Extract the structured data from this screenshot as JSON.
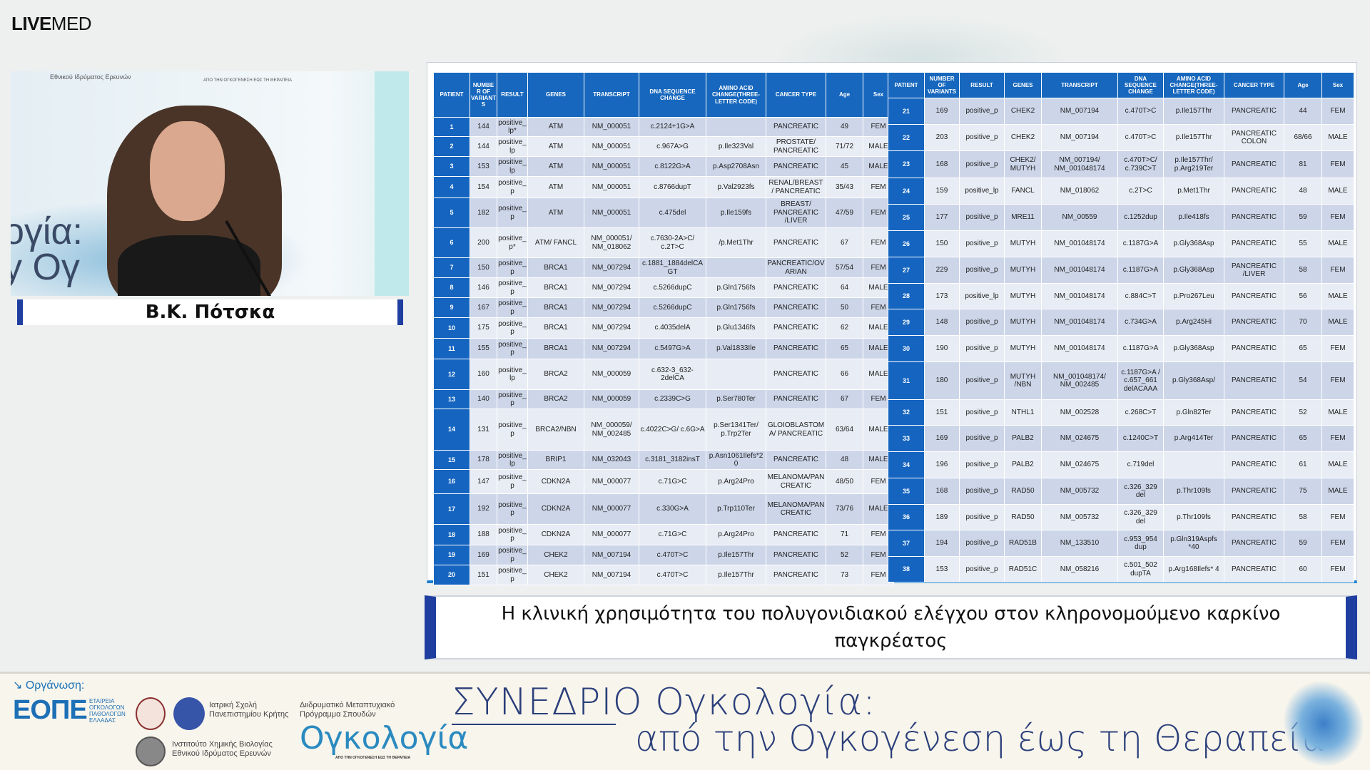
{
  "brand": {
    "logo_bold": "LIVE",
    "logo_light": "MED"
  },
  "video": {
    "speaker_name": "Β.Κ. Πότσκα",
    "backdrop_text": "ογία:\ny Ογ",
    "backdrop_small_1": "Εθνικού Ιδρύματος Ερευνών",
    "backdrop_small_2": "ΑΠΟ ΤΗΝ ΟΓΚΟΓΕΝΕΣΗ ΕΩΣ ΤΗ ΘΕΡΑΠΕΙΑ"
  },
  "slide": {
    "left_headers": [
      "PATIENT",
      "NUMBER OF VARIANTS",
      "RESULT",
      "GENES",
      "TRANSCRIPT",
      "DNA SEQUENCE CHANGE",
      "AMINO ACID CHANGE(THREE-LETTER CODE)",
      "CANCER TYPE",
      "Age",
      "Sex"
    ],
    "right_headers": [
      "PATIENT",
      "NUMBER OF VARIANTS",
      "RESULT",
      "GENES",
      "TRANSCRIPT",
      "DNA SEQUENCE CHANGE",
      "AMINO ACID CHANGE(THREE-LETTER CODE)",
      "CANCER TYPE",
      "Age",
      "Sex"
    ],
    "left_rows": [
      [
        "1",
        "144",
        "positive_lp*",
        "ATM",
        "NM_000051",
        "c.2124+1G>A",
        "",
        "PANCREATIC",
        "49",
        "FEM"
      ],
      [
        "2",
        "144",
        "positive_lp",
        "ATM",
        "NM_000051",
        "c.967A>G",
        "p.Ile323Val",
        "PROSTATE/ PANCREATIC",
        "71/72",
        "MALE"
      ],
      [
        "3",
        "153",
        "positive_lp",
        "ATM",
        "NM_000051",
        "c.8122G>A",
        "p.Asp2708Asn",
        "PANCREATIC",
        "45",
        "MALE"
      ],
      [
        "4",
        "154",
        "positive_p",
        "ATM",
        "NM_000051",
        "c.8766dupT",
        "p.Val2923fs",
        "RENAL/BREAST / PANCREATIC",
        "35/43",
        "FEM"
      ],
      [
        "5",
        "182",
        "positive_p",
        "ATM",
        "NM_000051",
        "c.475del",
        "p.Ile159fs",
        "BREAST/ PANCREATIC /LIVER",
        "47/59",
        "FEM"
      ],
      [
        "6",
        "200",
        "positive_p*",
        "ATM/ FANCL",
        "NM_000051/ NM_018062",
        "c.7630-2A>C/ c.2T>C",
        "/p.Met1Thr",
        "PANCREATIC",
        "67",
        "FEM"
      ],
      [
        "7",
        "150",
        "positive_p",
        "BRCA1",
        "NM_007294",
        "c.1881_1884delCAGT",
        "",
        "PANCREATIC/OVARIAN",
        "57/54",
        "FEM"
      ],
      [
        "8",
        "146",
        "positive_p",
        "BRCA1",
        "NM_007294",
        "c.5266dupC",
        "p.Gln1756fs",
        "PANCREATIC",
        "64",
        "MALE"
      ],
      [
        "9",
        "167",
        "positive_p",
        "BRCA1",
        "NM_007294",
        "c.5266dupC",
        "p.Gln1756fs",
        "PANCREATIC",
        "50",
        "FEM"
      ],
      [
        "10",
        "175",
        "positive_p",
        "BRCA1",
        "NM_007294",
        "c.4035delA",
        "p.Glu1346fs",
        "PANCREATIC",
        "62",
        "MALE"
      ],
      [
        "11",
        "155",
        "positive_p",
        "BRCA1",
        "NM_007294",
        "c.5497G>A",
        "p.Val1833Ile",
        "PANCREATIC",
        "65",
        "MALE"
      ],
      [
        "12",
        "160",
        "positive_lp",
        "BRCA2",
        "NM_000059",
        "c.632-3_632-2delCA",
        "",
        "PANCREATIC",
        "66",
        "MALE"
      ],
      [
        "13",
        "140",
        "positive_p",
        "BRCA2",
        "NM_000059",
        "c.2339C>G",
        "p.Ser780Ter",
        "PANCREATIC",
        "67",
        "FEM"
      ],
      [
        "14",
        "131",
        "positive_p",
        "BRCA2/NBN",
        "NM_000059/ NM_002485",
        "c.4022C>G/ c.6G>A",
        "p.Ser1341Ter/ p.Trp2Ter",
        "GLOIOBLASTOMA/ PANCREATIC",
        "63/64",
        "MALE"
      ],
      [
        "15",
        "178",
        "positive_lp",
        "BRIP1",
        "NM_032043",
        "c.3181_3182insT",
        "p.Asn1061Ilefs*20",
        "PANCREATIC",
        "48",
        "MALE"
      ],
      [
        "16",
        "147",
        "positive_p",
        "CDKN2A",
        "NM_000077",
        "c.71G>C",
        "p.Arg24Pro",
        "MELANOMA/PANCREATIC",
        "48/50",
        "FEM"
      ],
      [
        "17",
        "192",
        "positive_p",
        "CDKN2A",
        "NM_000077",
        "c.330G>A",
        "p.Trp110Ter",
        "MELANOMA/PANCREATIC",
        "73/76",
        "MALE"
      ],
      [
        "18",
        "188",
        "positive_p",
        "CDKN2A",
        "NM_000077",
        "c.71G>C",
        "p.Arg24Pro",
        "PANCREATIC",
        "71",
        "FEM"
      ],
      [
        "19",
        "169",
        "positive_p",
        "CHEK2",
        "NM_007194",
        "c.470T>C",
        "p.Ile157Thr",
        "PANCREATIC",
        "52",
        "FEM"
      ],
      [
        "20",
        "151",
        "positive_p",
        "CHEK2",
        "NM_007194",
        "c.470T>C",
        "p.Ile157Thr",
        "PANCREATIC",
        "73",
        "FEM"
      ]
    ],
    "right_rows": [
      [
        "21",
        "169",
        "positive_p",
        "CHEK2",
        "NM_007194",
        "c.470T>C",
        "p.Ile157Thr",
        "PANCREATIC",
        "44",
        "FEM"
      ],
      [
        "22",
        "203",
        "positive_p",
        "CHEK2",
        "NM_007194",
        "c.470T>C",
        "p.Ile157Thr",
        "PANCREATIC COLON",
        "68/66",
        "MALE"
      ],
      [
        "23",
        "168",
        "positive_p",
        "CHEK2/ MUTYH",
        "NM_007194/ NM_001048174",
        "c.470T>C/ c.739C>T",
        "p.Ile157Thr/ p.Arg219Ter",
        "PANCREATIC",
        "81",
        "FEM"
      ],
      [
        "24",
        "159",
        "positive_lp",
        "FANCL",
        "NM_018062",
        "c.2T>C",
        "p.Met1Thr",
        "PANCREATIC",
        "48",
        "MALE"
      ],
      [
        "25",
        "177",
        "positive_p",
        "MRE11",
        "NM_00559",
        "c.1252dup",
        "p.Ile418fs",
        "PANCREATIC",
        "59",
        "FEM"
      ],
      [
        "26",
        "150",
        "positive_p",
        "MUTYH",
        "NM_001048174",
        "c.1187G>A",
        "p.Gly368Asp",
        "PANCREATIC",
        "55",
        "MALE"
      ],
      [
        "27",
        "229",
        "positive_p",
        "MUTYH",
        "NM_001048174",
        "c.1187G>A",
        "p.Gly368Asp",
        "PANCREATIC /LIVER",
        "58",
        "FEM"
      ],
      [
        "28",
        "173",
        "positive_lp",
        "MUTYH",
        "NM_001048174",
        "c.884C>T",
        "p.Pro267Leu",
        "PANCREATIC",
        "56",
        "MALE"
      ],
      [
        "29",
        "148",
        "positive_p",
        "MUTYH",
        "NM_001048174",
        "c.734G>A",
        "p.Arg245Hi",
        "PANCREATIC",
        "70",
        "MALE"
      ],
      [
        "30",
        "190",
        "positive_p",
        "MUTYH",
        "NM_001048174",
        "c.1187G>A",
        "p.Gly368Asp",
        "PANCREATIC",
        "65",
        "FEM"
      ],
      [
        "31",
        "180",
        "positive_p",
        "MUTYH /NBN",
        "NM_001048174/ NM_002485",
        "c.1187G>A / c.657_661 delACAAA",
        "p.Gly368Asp/",
        "PANCREATIC",
        "54",
        "FEM"
      ],
      [
        "32",
        "151",
        "positive_p",
        "NTHL1",
        "NM_002528",
        "c.268C>T",
        "p.Gln82Ter",
        "PANCREATIC",
        "52",
        "MALE"
      ],
      [
        "33",
        "169",
        "positive_p",
        "PALB2",
        "NM_024675",
        "c.1240C>T",
        "p.Arg414Ter",
        "PANCREATIC",
        "65",
        "FEM"
      ],
      [
        "34",
        "196",
        "positive_p",
        "PALB2",
        "NM_024675",
        "c.719del",
        "",
        "PANCREATIC",
        "61",
        "MALE"
      ],
      [
        "35",
        "168",
        "positive_p",
        "RAD50",
        "NM_005732",
        "c.326_329 del",
        "p.Thr109fs",
        "PANCREATIC",
        "75",
        "MALE"
      ],
      [
        "36",
        "189",
        "positive_p",
        "RAD50",
        "NM_005732",
        "c.326_329 del",
        "p.Thr109fs",
        "PANCREATIC",
        "58",
        "FEM"
      ],
      [
        "37",
        "194",
        "positive_p",
        "RAD51B",
        "NM_133510",
        "c.953_954 dup",
        "p.Gln319Aspfs *40",
        "PANCREATIC",
        "59",
        "FEM"
      ],
      [
        "38",
        "153",
        "positive_p",
        "RAD51C",
        "NM_058216",
        "c.501_502 dupTA",
        "p.Arg168Ilefs* 4",
        "PANCREATIC",
        "60",
        "FEM"
      ]
    ],
    "colors": {
      "header": "#1667bd",
      "patient_cell": "#1565c0",
      "row_odd": "#cdd6e9",
      "row_even": "#e8ecf4"
    }
  },
  "caption": "Η κλινική χρησιμότητα του πολυγονιδιακού ελέγχου στον κληρονομούμενο καρκίνο παγκρέατος",
  "footer": {
    "organizer_label": "Οργάνωση:",
    "eope_logo": "ΕΟΠΕ",
    "eope_sub": "ΕΤΑΙΡΕΙΑ ΟΓΚΟΛΟΓΩΝ ΠΑΘΟΛΟΓΩΝ ΕΛΛΑΔΑΣ",
    "medical_school": "Ιατρική Σχολή\nΠανεπιστημίου Κρήτης",
    "institute": "Ινστιτούτο Χημικής Βιολογίας\nΕθνικού Ιδρύματος Ερευνών",
    "program": "Διιδρυματικό Μεταπτυχιακό\nΠρόγραμμα Σπουδών",
    "program_logo": "Ογκολογία",
    "program_logo_sub": "ΑΠΟ ΤΗΝ ΟΓΚΟΓΕΝΕΣΗ ΕΩΣ ΤΗ ΘΕΡΑΠΕΙΑ",
    "title_line1": "ΣΥΝΕΔΡΙΟ Ογκολογία:",
    "title_line2": "από την Ογκογένεση έως τη Θεραπεία"
  }
}
